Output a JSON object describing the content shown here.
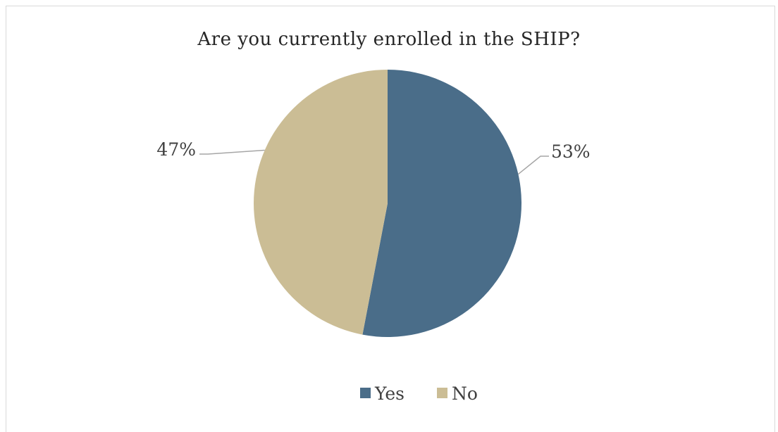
{
  "chart_data": {
    "type": "pie",
    "title": "Are you currently enrolled in the SHIP?",
    "categories": [
      "Yes",
      "No"
    ],
    "values": [
      53,
      47
    ],
    "labels": [
      "53%",
      "47%"
    ],
    "colors": [
      "#4a6d89",
      "#cbbd95"
    ],
    "legend_position": "bottom"
  }
}
